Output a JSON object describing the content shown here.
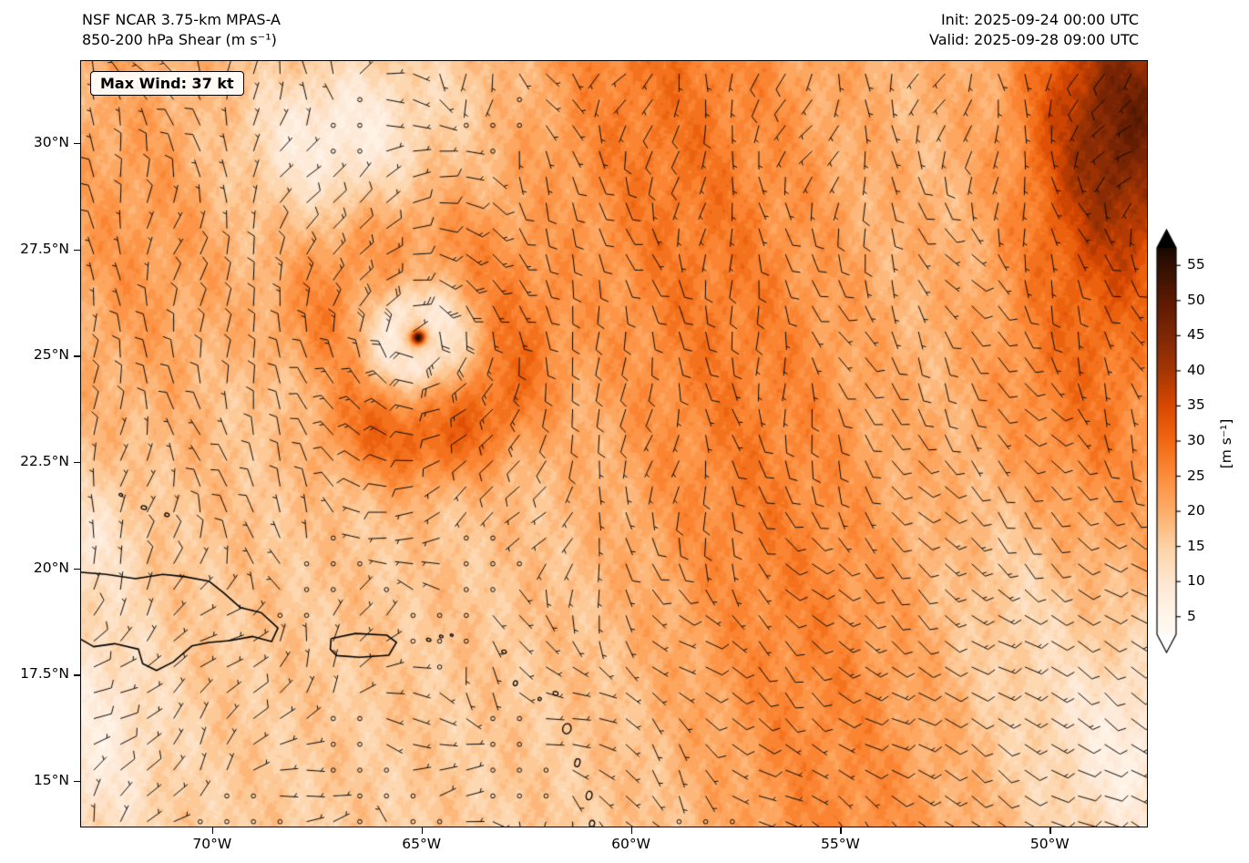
{
  "header": {
    "title_line1": "NSF NCAR 3.75-km MPAS-A",
    "title_line2": "850-200 hPa Shear (m s⁻¹)",
    "init_label": "Init: 2025-09-24 00:00 UTC",
    "valid_label": "Valid: 2025-09-28 09:00 UTC"
  },
  "map": {
    "max_wind_label": "Max Wind: 37 kt"
  },
  "chart_data": {
    "type": "heatmap",
    "title": "NSF NCAR 3.75-km MPAS-A 850-200 hPa Shear (m s⁻¹)",
    "variable": "850-200 hPa vertical wind shear magnitude with wind barbs",
    "units": "m s⁻¹",
    "model": "NSF NCAR 3.75-km MPAS-A",
    "init_time": "2025-09-24 00:00 UTC",
    "valid_time": "2025-09-28 09:00 UTC",
    "max_wind": "37 kt",
    "lon_range": [
      -73.15,
      -47.7
    ],
    "lat_range": [
      13.95,
      31.95
    ],
    "lat_ticks": [
      {
        "value": 30,
        "label": "30°N"
      },
      {
        "value": 27.5,
        "label": "27.5°N"
      },
      {
        "value": 25,
        "label": "25°N"
      },
      {
        "value": 22.5,
        "label": "22.5°N"
      },
      {
        "value": 20,
        "label": "20°N"
      },
      {
        "value": 17.5,
        "label": "17.5°N"
      },
      {
        "value": 15,
        "label": "15°N"
      }
    ],
    "lon_ticks": [
      {
        "value": -70,
        "label": "70°W"
      },
      {
        "value": -65,
        "label": "65°W"
      },
      {
        "value": -60,
        "label": "60°W"
      },
      {
        "value": -55,
        "label": "55°W"
      },
      {
        "value": -50,
        "label": "50°W"
      }
    ],
    "colorbar": {
      "label": "[m s⁻¹]",
      "range": [
        0,
        60
      ],
      "ticks": [
        {
          "value": 55,
          "label": "55"
        },
        {
          "value": 50,
          "label": "50"
        },
        {
          "value": 45,
          "label": "45"
        },
        {
          "value": 40,
          "label": "40"
        },
        {
          "value": 35,
          "label": "35"
        },
        {
          "value": 30,
          "label": "30"
        },
        {
          "value": 25,
          "label": "25"
        },
        {
          "value": 20,
          "label": "20"
        },
        {
          "value": 15,
          "label": "15"
        },
        {
          "value": 10,
          "label": "10"
        },
        {
          "value": 5,
          "label": "5"
        }
      ],
      "colors": [
        {
          "v": 0,
          "c": "#ffffff"
        },
        {
          "v": 5,
          "c": "#fff5eb"
        },
        {
          "v": 10,
          "c": "#fee7d2"
        },
        {
          "v": 15,
          "c": "#fdd2a5"
        },
        {
          "v": 20,
          "c": "#fdae6b"
        },
        {
          "v": 25,
          "c": "#fd8d3c"
        },
        {
          "v": 30,
          "c": "#f16913"
        },
        {
          "v": 35,
          "c": "#d94801"
        },
        {
          "v": 40,
          "c": "#a63603"
        },
        {
          "v": 45,
          "c": "#7f2704"
        },
        {
          "v": 50,
          "c": "#5c1a02"
        },
        {
          "v": 55,
          "c": "#341002"
        },
        {
          "v": 60,
          "c": "#000000"
        }
      ]
    },
    "storm_center": {
      "lon": -65.1,
      "lat": 25.45
    },
    "map_features": [
      "Hispaniola",
      "Turks and Caicos",
      "Puerto Rico",
      "Virgin Islands",
      "Lesser Antilles"
    ]
  }
}
